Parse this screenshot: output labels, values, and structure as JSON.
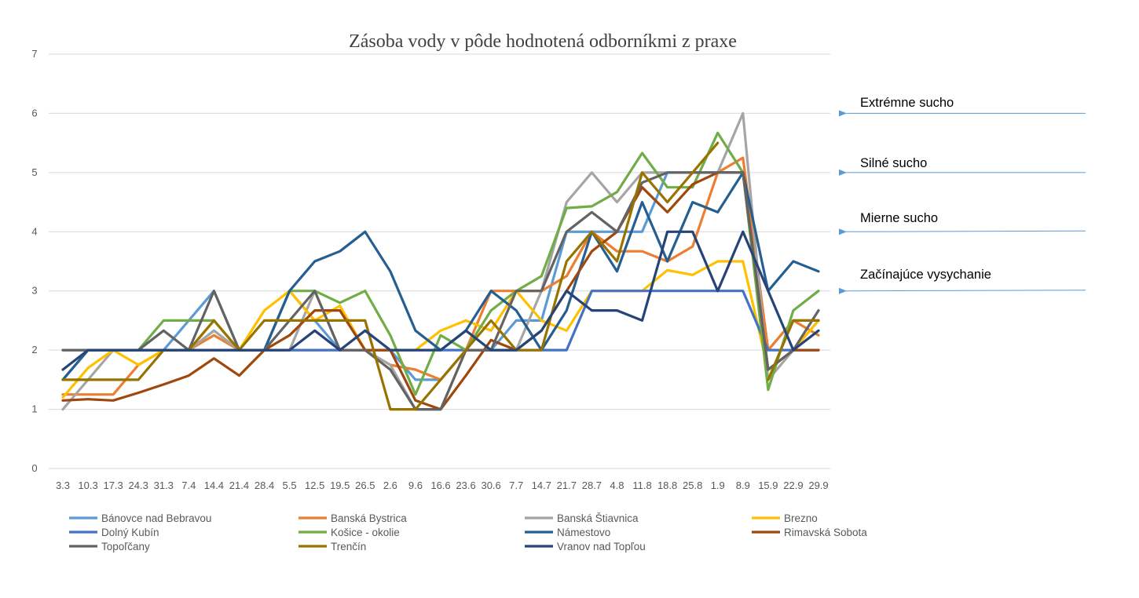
{
  "chart_data": {
    "type": "line",
    "title": "Zásoba vody v pôde hodnotená odborníkmi z praxe",
    "xlabel": "",
    "ylabel": "",
    "ylim": [
      0,
      7
    ],
    "yticks": [
      "0",
      "1",
      "2",
      "3",
      "4",
      "5",
      "6",
      "7"
    ],
    "grid": true,
    "legend_position": "bottom",
    "categories": [
      "3.3",
      "10.3",
      "17.3",
      "24.3",
      "31.3",
      "7.4",
      "14.4",
      "21.4",
      "28.4",
      "5.5",
      "12.5",
      "19.5",
      "26.5",
      "2.6",
      "9.6",
      "16.6",
      "23.6",
      "30.6",
      "7.7",
      "14.7",
      "21.7",
      "28.7",
      "4.8",
      "11.8",
      "18.8",
      "25.8",
      "1.9",
      "8.9",
      "15.9",
      "22.9",
      "29.9"
    ],
    "series": [
      {
        "name": "Bánovce nad Bebravou",
        "color": "#5B9BD5",
        "values": [
          1.5,
          2,
          2,
          2,
          2,
          2.5,
          3,
          2,
          2,
          3,
          2.5,
          2,
          2,
          2,
          1.5,
          1.5,
          2,
          2,
          2.5,
          2.5,
          4,
          4,
          4,
          4,
          5,
          5,
          5,
          5,
          2,
          2.5,
          2.5
        ]
      },
      {
        "name": "Banská Bystrica",
        "color": "#ED7D31",
        "values": [
          1.25,
          1.25,
          1.25,
          1.75,
          2,
          2,
          2.25,
          2,
          2,
          2,
          2,
          2,
          2,
          1.75,
          1.67,
          1.5,
          2,
          3,
          3,
          3,
          3.25,
          4,
          3.67,
          3.67,
          3.5,
          3.75,
          5,
          5.25,
          2,
          2.5,
          2.25
        ]
      },
      {
        "name": "Banská Štiavnica",
        "color": "#A5A5A5",
        "values": [
          1,
          1.5,
          2,
          2,
          2,
          2,
          2.33,
          2,
          2,
          2,
          3,
          2,
          2,
          1.75,
          1,
          1,
          2,
          2,
          2,
          3,
          4.5,
          5,
          4.5,
          5,
          5,
          5,
          5,
          6,
          1.5,
          2,
          2.5
        ]
      },
      {
        "name": "Brezno",
        "color": "#FFC000",
        "values": [
          1.2,
          1.7,
          2,
          1.75,
          2,
          2,
          2.5,
          2,
          2.67,
          3,
          2.5,
          2.75,
          2,
          2,
          2,
          2.33,
          2.5,
          2.33,
          3,
          2.5,
          2.33,
          3,
          3,
          3,
          3.35,
          3.27,
          3.5,
          3.5,
          1.67,
          2,
          2.5
        ]
      },
      {
        "name": "Dolný Kubín",
        "color": "#4472C4",
        "values": [
          2,
          2,
          2,
          2,
          2,
          2,
          2,
          2,
          2,
          2,
          2,
          2,
          2,
          2,
          2,
          2,
          2,
          2,
          2,
          2,
          2,
          3,
          3,
          3,
          3,
          3,
          3,
          3,
          2,
          2,
          2
        ]
      },
      {
        "name": "Košice - okolie",
        "color": "#70AD47",
        "values": [
          1.5,
          2,
          2,
          2,
          2.5,
          2.5,
          2.5,
          2,
          2,
          3,
          3,
          2.8,
          3,
          2.25,
          1.25,
          2.25,
          2,
          2.67,
          3,
          3.25,
          4.4,
          4.43,
          4.67,
          5.33,
          4.75,
          4.75,
          5.67,
          5,
          1.33,
          2.67,
          3
        ]
      },
      {
        "name": "Námestovo",
        "color": "#255E91",
        "values": [
          1.5,
          2,
          2,
          2,
          2,
          2,
          2,
          2,
          2,
          3,
          3.5,
          3.67,
          4,
          3.33,
          2.33,
          2,
          2.33,
          3,
          2.67,
          2,
          2.67,
          4,
          3.33,
          4.5,
          3.5,
          4.5,
          4.33,
          5,
          3,
          3.5,
          3.33
        ]
      },
      {
        "name": "Rimavská Sobota",
        "color": "#9E480E",
        "values": [
          1.15,
          1.17,
          1.15,
          1.28,
          1.42,
          1.57,
          1.86,
          1.57,
          2,
          2.25,
          2.67,
          2.67,
          2,
          2,
          1.15,
          1,
          1.57,
          2.17,
          2,
          2.33,
          3,
          3.67,
          4,
          4.75,
          4.33,
          4.8,
          5,
          5,
          1.67,
          2,
          2
        ]
      },
      {
        "name": "Topoľčany",
        "color": "#636363",
        "values": [
          2,
          2,
          2,
          2,
          2.33,
          2,
          3,
          2,
          2,
          2.5,
          3,
          2,
          2,
          1.67,
          1,
          1,
          2,
          2,
          3,
          3,
          4,
          4.33,
          4,
          4.83,
          5,
          5,
          5,
          5,
          1.67,
          2,
          2.67
        ]
      },
      {
        "name": "Trenčín",
        "color": "#997300",
        "values": [
          1.5,
          1.5,
          1.5,
          1.5,
          2,
          2,
          2.5,
          2,
          2.5,
          2.5,
          2.5,
          2.5,
          2.5,
          1,
          1,
          1.5,
          2,
          2.5,
          2,
          2,
          3.5,
          4,
          3.5,
          5,
          4.5,
          5,
          5.5,
          null,
          1.5,
          2.5,
          2.5
        ]
      },
      {
        "name": "Vranov nad Topľou",
        "color": "#264478",
        "values": [
          1.67,
          2,
          2,
          2,
          2,
          2,
          2,
          2,
          2,
          2,
          2.33,
          2,
          2.33,
          2,
          2,
          2,
          2.33,
          2,
          2,
          2.33,
          3,
          2.67,
          2.67,
          2.5,
          4,
          4,
          3,
          4,
          3,
          2,
          2.33
        ]
      }
    ],
    "annotations": [
      {
        "text": "Extrémne sucho",
        "y": 6
      },
      {
        "text": "Silné sucho",
        "y": 5
      },
      {
        "text": "Mierne sucho",
        "y": 4
      },
      {
        "text": "Začínajúce vysychanie",
        "y": 3
      }
    ],
    "annotation_arrow_color": "#5B9BD5",
    "grid_color": "#D9D9D9"
  }
}
